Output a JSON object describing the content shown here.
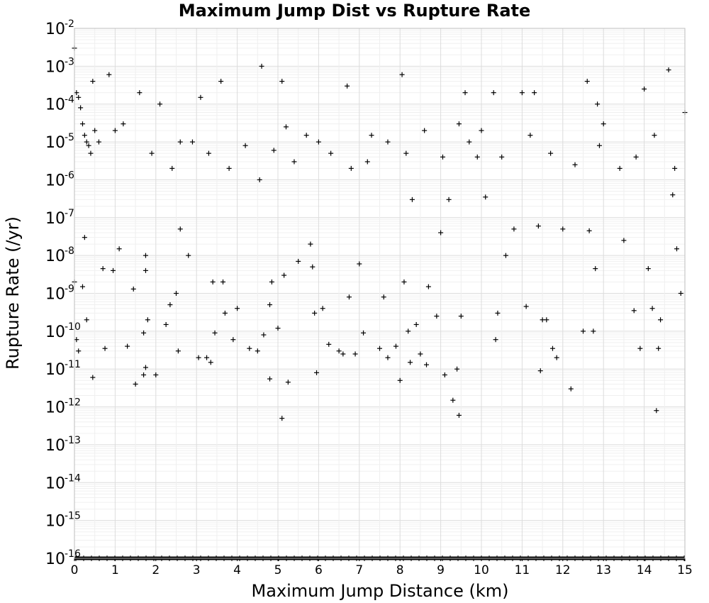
{
  "chart_data": {
    "type": "scatter",
    "title": "Maximum Jump Dist vs Rupture Rate",
    "xlabel": "Maximum Jump Distance (km)",
    "ylabel": "Rupture Rate (/yr)",
    "xlim": [
      0,
      15
    ],
    "ylim": [
      1e-16,
      0.01
    ],
    "y_scale": "log",
    "grid": true,
    "marker": "plus",
    "marker_color": "#000000",
    "x_ticks": [
      "0",
      "1",
      "2",
      "3",
      "4",
      "5",
      "6",
      "7",
      "8",
      "9",
      "10",
      "11",
      "12",
      "13",
      "14",
      "15"
    ],
    "y_ticks": [
      {
        "base": "10",
        "exp": "-2"
      },
      {
        "base": "10",
        "exp": "-3"
      },
      {
        "base": "10",
        "exp": "-4"
      },
      {
        "base": "10",
        "exp": "-5"
      },
      {
        "base": "10",
        "exp": "-6"
      },
      {
        "base": "10",
        "exp": "-7"
      },
      {
        "base": "10",
        "exp": "-8"
      },
      {
        "base": "10",
        "exp": "-9"
      },
      {
        "base": "10",
        "exp": "-10"
      },
      {
        "base": "10",
        "exp": "-11"
      },
      {
        "base": "10",
        "exp": "-12"
      },
      {
        "base": "10",
        "exp": "-13"
      },
      {
        "base": "10",
        "exp": "-14"
      },
      {
        "base": "10",
        "exp": "-15"
      },
      {
        "base": "10",
        "exp": "-16"
      }
    ],
    "points": [
      [
        0.0,
        0.003
      ],
      [
        0.05,
        0.0002
      ],
      [
        0.1,
        0.00015
      ],
      [
        0.15,
        8e-05
      ],
      [
        0.2,
        3e-05
      ],
      [
        0.25,
        1.5e-05
      ],
      [
        0.3,
        1e-05
      ],
      [
        0.35,
        8e-06
      ],
      [
        0.4,
        5e-06
      ],
      [
        0.45,
        0.0004
      ],
      [
        0.5,
        2e-05
      ],
      [
        0.0,
        2e-09
      ],
      [
        0.05,
        6e-11
      ],
      [
        0.1,
        3e-11
      ],
      [
        0.3,
        2e-10
      ],
      [
        0.45,
        6e-12
      ],
      [
        0.2,
        1.5e-09
      ],
      [
        0.25,
        3e-08
      ],
      [
        0.7,
        4.5e-09
      ],
      [
        0.85,
        0.0006
      ],
      [
        0.75,
        3.5e-11
      ],
      [
        0.95,
        4e-09
      ],
      [
        1.0,
        2e-05
      ],
      [
        1.1,
        1.5e-08
      ],
      [
        1.3,
        4e-11
      ],
      [
        1.5,
        4e-12
      ],
      [
        1.45,
        1.3e-09
      ],
      [
        1.6,
        0.0002
      ],
      [
        1.7,
        9e-11
      ],
      [
        1.75,
        1.1e-11
      ],
      [
        1.8,
        2e-10
      ],
      [
        1.7,
        7e-12
      ],
      [
        1.75,
        4e-09
      ],
      [
        1.75,
        1e-08
      ],
      [
        2.0,
        7e-12
      ],
      [
        2.1,
        0.0001
      ],
      [
        2.25,
        1.5e-10
      ],
      [
        2.35,
        5e-10
      ],
      [
        2.5,
        1e-09
      ],
      [
        2.55,
        3e-11
      ],
      [
        2.6,
        5e-08
      ],
      [
        2.6,
        1e-05
      ],
      [
        2.8,
        1e-08
      ],
      [
        3.05,
        2e-11
      ],
      [
        3.1,
        0.00015
      ],
      [
        3.25,
        2e-11
      ],
      [
        3.35,
        1.5e-11
      ],
      [
        3.4,
        2e-09
      ],
      [
        3.45,
        9e-11
      ],
      [
        3.6,
        0.0004
      ],
      [
        3.65,
        2e-09
      ],
      [
        3.7,
        3e-10
      ],
      [
        3.9,
        6e-11
      ],
      [
        4.0,
        4e-10
      ],
      [
        4.3,
        3.5e-11
      ],
      [
        4.5,
        3e-11
      ],
      [
        4.6,
        0.001
      ],
      [
        4.65,
        8e-11
      ],
      [
        4.8,
        5e-10
      ],
      [
        4.85,
        2e-09
      ],
      [
        4.8,
        5.5e-12
      ],
      [
        5.0,
        1.2e-10
      ],
      [
        5.1,
        0.0004
      ],
      [
        5.15,
        3e-09
      ],
      [
        5.2,
        2.5e-05
      ],
      [
        5.25,
        4.5e-12
      ],
      [
        5.1,
        5e-13
      ],
      [
        5.5,
        7e-09
      ],
      [
        5.8,
        2e-08
      ],
      [
        5.85,
        5e-09
      ],
      [
        5.9,
        3e-10
      ],
      [
        5.95,
        8e-12
      ],
      [
        6.0,
        1e-05
      ],
      [
        6.1,
        4e-10
      ],
      [
        6.25,
        4.5e-11
      ],
      [
        6.5,
        3e-11
      ],
      [
        6.6,
        2.5e-11
      ],
      [
        6.7,
        0.0003
      ],
      [
        6.75,
        8e-10
      ],
      [
        6.9,
        2.5e-11
      ],
      [
        7.0,
        6e-09
      ],
      [
        7.1,
        9e-11
      ],
      [
        7.3,
        1.5e-05
      ],
      [
        7.5,
        3.5e-11
      ],
      [
        7.6,
        8e-10
      ],
      [
        7.7,
        2e-11
      ],
      [
        7.9,
        4e-11
      ],
      [
        8.0,
        5e-12
      ],
      [
        8.05,
        0.0006
      ],
      [
        8.1,
        2e-09
      ],
      [
        8.2,
        1e-10
      ],
      [
        8.25,
        1.5e-11
      ],
      [
        8.3,
        3e-07
      ],
      [
        8.4,
        1.5e-10
      ],
      [
        8.5,
        2.5e-11
      ],
      [
        8.65,
        1.3e-11
      ],
      [
        8.7,
        1.5e-09
      ],
      [
        8.9,
        2.5e-10
      ],
      [
        9.0,
        4e-08
      ],
      [
        9.1,
        7e-12
      ],
      [
        9.2,
        3e-07
      ],
      [
        9.3,
        1.5e-12
      ],
      [
        9.4,
        1e-11
      ],
      [
        9.45,
        6e-13
      ],
      [
        9.5,
        2.5e-10
      ],
      [
        9.6,
        0.0002
      ],
      [
        9.7,
        1e-05
      ],
      [
        9.9,
        4e-06
      ],
      [
        10.1,
        3.5e-07
      ],
      [
        10.3,
        0.0002
      ],
      [
        10.35,
        6e-11
      ],
      [
        10.4,
        3e-10
      ],
      [
        10.6,
        1e-08
      ],
      [
        10.8,
        5e-08
      ],
      [
        11.0,
        0.0002
      ],
      [
        11.1,
        4.5e-10
      ],
      [
        11.3,
        0.0002
      ],
      [
        11.4,
        6e-08
      ],
      [
        11.45,
        9e-12
      ],
      [
        11.5,
        2e-10
      ],
      [
        11.6,
        2e-10
      ],
      [
        11.75,
        3.5e-11
      ],
      [
        11.85,
        2e-11
      ],
      [
        12.0,
        5e-08
      ],
      [
        12.2,
        3e-12
      ],
      [
        12.5,
        1e-10
      ],
      [
        12.6,
        0.0004
      ],
      [
        12.65,
        4.5e-08
      ],
      [
        12.75,
        1e-10
      ],
      [
        12.8,
        4.5e-09
      ],
      [
        12.85,
        0.0001
      ],
      [
        13.0,
        3e-05
      ],
      [
        13.5,
        2.5e-08
      ],
      [
        13.75,
        3.5e-10
      ],
      [
        13.9,
        3.5e-11
      ],
      [
        14.0,
        0.00025
      ],
      [
        14.1,
        4.5e-09
      ],
      [
        14.2,
        4e-10
      ],
      [
        14.3,
        8e-13
      ],
      [
        14.35,
        3.5e-11
      ],
      [
        14.4,
        2e-10
      ],
      [
        14.6,
        0.0008
      ],
      [
        14.7,
        4e-07
      ],
      [
        14.8,
        1.5e-08
      ],
      [
        14.9,
        1e-09
      ],
      [
        15.0,
        6e-05
      ],
      [
        0.6,
        1e-05
      ],
      [
        1.2,
        3e-05
      ],
      [
        1.9,
        5e-06
      ],
      [
        2.4,
        2e-06
      ],
      [
        2.9,
        1e-05
      ],
      [
        3.3,
        5e-06
      ],
      [
        3.8,
        2e-06
      ],
      [
        4.2,
        8e-06
      ],
      [
        4.55,
        1e-06
      ],
      [
        4.9,
        6e-06
      ],
      [
        5.4,
        3e-06
      ],
      [
        5.7,
        1.5e-05
      ],
      [
        6.3,
        5e-06
      ],
      [
        6.8,
        2e-06
      ],
      [
        7.2,
        3e-06
      ],
      [
        7.7,
        1e-05
      ],
      [
        8.15,
        5e-06
      ],
      [
        8.6,
        2e-05
      ],
      [
        9.05,
        4e-06
      ],
      [
        9.45,
        3e-05
      ],
      [
        10.0,
        2e-05
      ],
      [
        10.5,
        4e-06
      ],
      [
        11.2,
        1.5e-05
      ],
      [
        11.7,
        5e-06
      ],
      [
        12.3,
        2.5e-06
      ],
      [
        12.9,
        8e-06
      ],
      [
        13.4,
        2e-06
      ],
      [
        13.8,
        4e-06
      ],
      [
        14.25,
        1.5e-05
      ],
      [
        14.75,
        2e-06
      ]
    ],
    "floor_values": {
      "y": 1e-16,
      "x_range": [
        0,
        15
      ]
    }
  }
}
